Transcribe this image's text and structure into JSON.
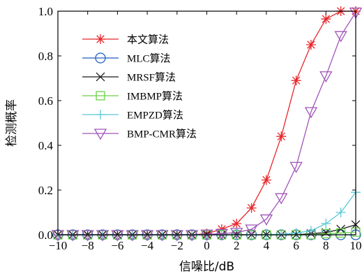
{
  "chart_data": {
    "type": "line",
    "title": "",
    "xlabel": "信噪比/dB",
    "ylabel": "检测概率",
    "xlim": [
      -10,
      10
    ],
    "ylim": [
      0,
      1
    ],
    "xticks": [
      "−10",
      "−8",
      "−6",
      "−4",
      "−2",
      "0",
      "2",
      "4",
      "6",
      "8",
      "10"
    ],
    "yticks": [
      "0.0",
      "0.2",
      "0.4",
      "0.6",
      "0.8",
      "1.0"
    ],
    "grid": false,
    "legend_position": "top-left",
    "x": [
      -10,
      -9,
      -8,
      -7,
      -6,
      -5,
      -4,
      -3,
      -2,
      -1,
      0,
      1,
      2,
      3,
      4,
      5,
      6,
      7,
      8,
      9,
      10
    ],
    "series": [
      {
        "name": "本文算法",
        "color": "#e8262a",
        "marker": "asterisk",
        "values": [
          0,
          0,
          0,
          0,
          0,
          0,
          0,
          0,
          0,
          0,
          0.005,
          0.025,
          0.05,
          0.12,
          0.245,
          0.44,
          0.69,
          0.85,
          0.965,
          1.0,
          1.0
        ]
      },
      {
        "name": "MLC算法",
        "color": "#1f5fbf",
        "marker": "circle",
        "values": [
          0,
          0,
          0,
          0,
          0,
          0,
          0,
          0,
          0,
          0,
          0,
          0,
          0,
          0,
          0,
          0,
          0,
          0,
          0,
          0,
          0
        ]
      },
      {
        "name": "MRSF算法",
        "color": "#1a1a1a",
        "marker": "x",
        "values": [
          0,
          0,
          0,
          0,
          0,
          0,
          0,
          0,
          0,
          0,
          0,
          0,
          0,
          0,
          0,
          0,
          0,
          0.005,
          0.01,
          0.025,
          0.045
        ]
      },
      {
        "name": "IMBMP算法",
        "color": "#6fcf4a",
        "marker": "square",
        "values": [
          0,
          0,
          0,
          0,
          0,
          0,
          0,
          0,
          0,
          0,
          0,
          0,
          0,
          0,
          0,
          0,
          0,
          0,
          0.005,
          0.008,
          0.012
        ]
      },
      {
        "name": "EMPZD算法",
        "color": "#5bc8d6",
        "marker": "plus",
        "values": [
          0,
          0,
          0,
          0,
          0,
          0,
          0,
          0,
          0,
          0,
          0,
          0,
          0,
          0,
          0,
          0.003,
          0.008,
          0.018,
          0.05,
          0.1,
          0.19
        ]
      },
      {
        "name": "BMP-CMR算法",
        "color": "#a055b8",
        "marker": "triangle-down",
        "values": [
          0,
          0,
          0,
          0,
          0,
          0,
          0,
          0,
          0,
          0,
          0.002,
          0.005,
          0.01,
          0.025,
          0.07,
          0.165,
          0.305,
          0.55,
          0.71,
          0.89,
          0.995
        ]
      }
    ]
  }
}
